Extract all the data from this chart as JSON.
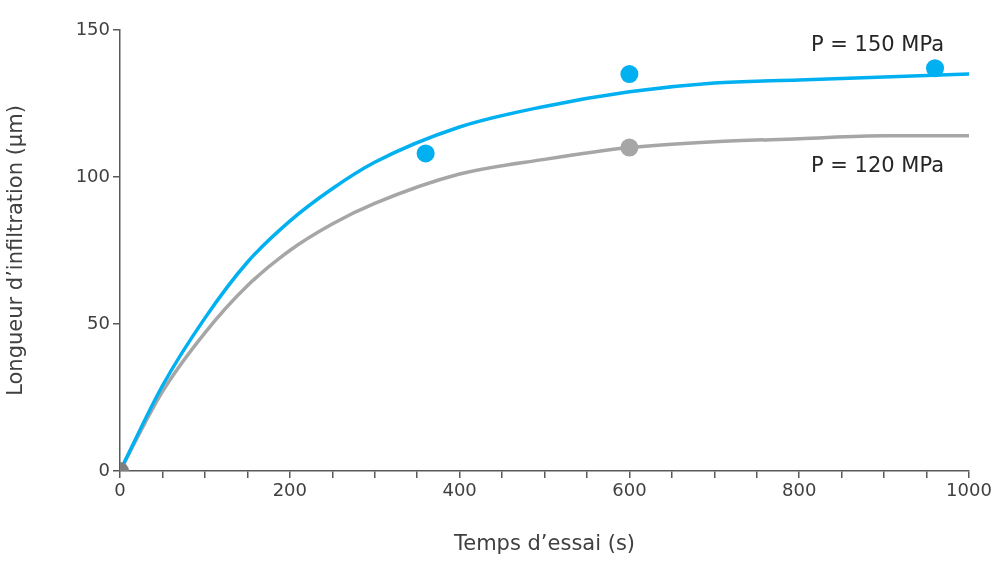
{
  "chart_data": {
    "type": "scatter",
    "xlabel": "Temps d’essai (s)",
    "ylabel": "Longueur d’infiltration (µm)",
    "xlim": [
      0,
      1000
    ],
    "ylim": [
      0,
      150
    ],
    "xticks": [
      0,
      {
        "value": 50,
        "label": null
      },
      {
        "value": 100,
        "label": null
      },
      {
        "value": 150,
        "label": null
      },
      200,
      {
        "value": 250,
        "label": null
      },
      {
        "value": 300,
        "label": null
      },
      {
        "value": 350,
        "label": null
      },
      400,
      {
        "value": 450,
        "label": null
      },
      {
        "value": 500,
        "label": null
      },
      {
        "value": 550,
        "label": null
      },
      600,
      {
        "value": 650,
        "label": null
      },
      {
        "value": 700,
        "label": null
      },
      {
        "value": 750,
        "label": null
      },
      800,
      {
        "value": 850,
        "label": null
      },
      {
        "value": 900,
        "label": null
      },
      {
        "value": 950,
        "label": null
      },
      1000
    ],
    "yticks": [
      0,
      50,
      100,
      150
    ],
    "grid": false,
    "legend": false,
    "marker": "circle",
    "line_style": "solid",
    "series": [
      {
        "type": "line",
        "name": "P = 150 MPa",
        "color": "#00b0f0",
        "marker": "none",
        "x": [
          0,
          50,
          100,
          150,
          200,
          250,
          300,
          400,
          500,
          600,
          700,
          800,
          900,
          1000
        ],
        "values": [
          0,
          29,
          52,
          71,
          85,
          96,
          105,
          117,
          124,
          129,
          132,
          133,
          134,
          135
        ]
      },
      {
        "type": "line",
        "name": "P = 120 MPa",
        "color": "#a6a6a6",
        "marker": "none",
        "x": [
          0,
          50,
          100,
          150,
          200,
          250,
          300,
          400,
          500,
          600,
          700,
          800,
          900,
          1000
        ],
        "values": [
          0,
          27,
          47,
          63,
          75,
          84,
          91,
          101,
          106,
          110,
          112,
          113,
          114,
          114
        ]
      },
      {
        "color": "#00b0f0",
        "x": [
          360,
          600,
          960
        ],
        "values": [
          108,
          135,
          137
        ]
      },
      {
        "color": "#a6a6a6",
        "colors": [
          "#7f7f7f",
          "#a6a6a6"
        ],
        "x": [
          0,
          600
        ],
        "values": [
          0,
          110
        ]
      }
    ]
  }
}
